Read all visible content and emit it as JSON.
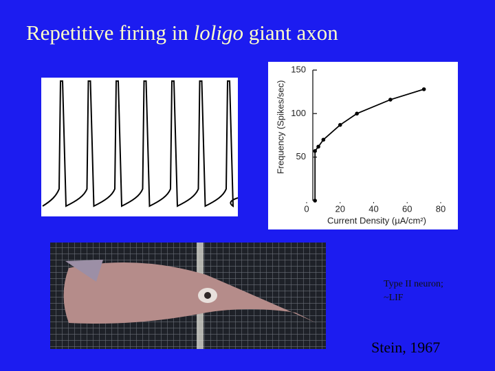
{
  "header": {
    "title_before": "Repetitive firing in ",
    "title_italic": "loligo",
    "title_after": " giant axon"
  },
  "notes": [
    "Type II neuron;",
    "~LIF"
  ],
  "citation": "Stein, 1967",
  "chart_data": {
    "type": "line",
    "ylabel": "Frequency (Spikes/sec)",
    "xlabel": "Current Density (µA/cm²)",
    "x": [
      5,
      5,
      7,
      10,
      20,
      30,
      50,
      70
    ],
    "values": [
      0,
      57,
      62,
      70,
      87,
      100,
      116,
      128
    ],
    "color": "#000000",
    "xlim": [
      0,
      80
    ],
    "ylim": [
      0,
      150
    ],
    "xticks": [
      0,
      20,
      40,
      60,
      80
    ],
    "yticks": [
      50,
      100,
      150
    ]
  }
}
